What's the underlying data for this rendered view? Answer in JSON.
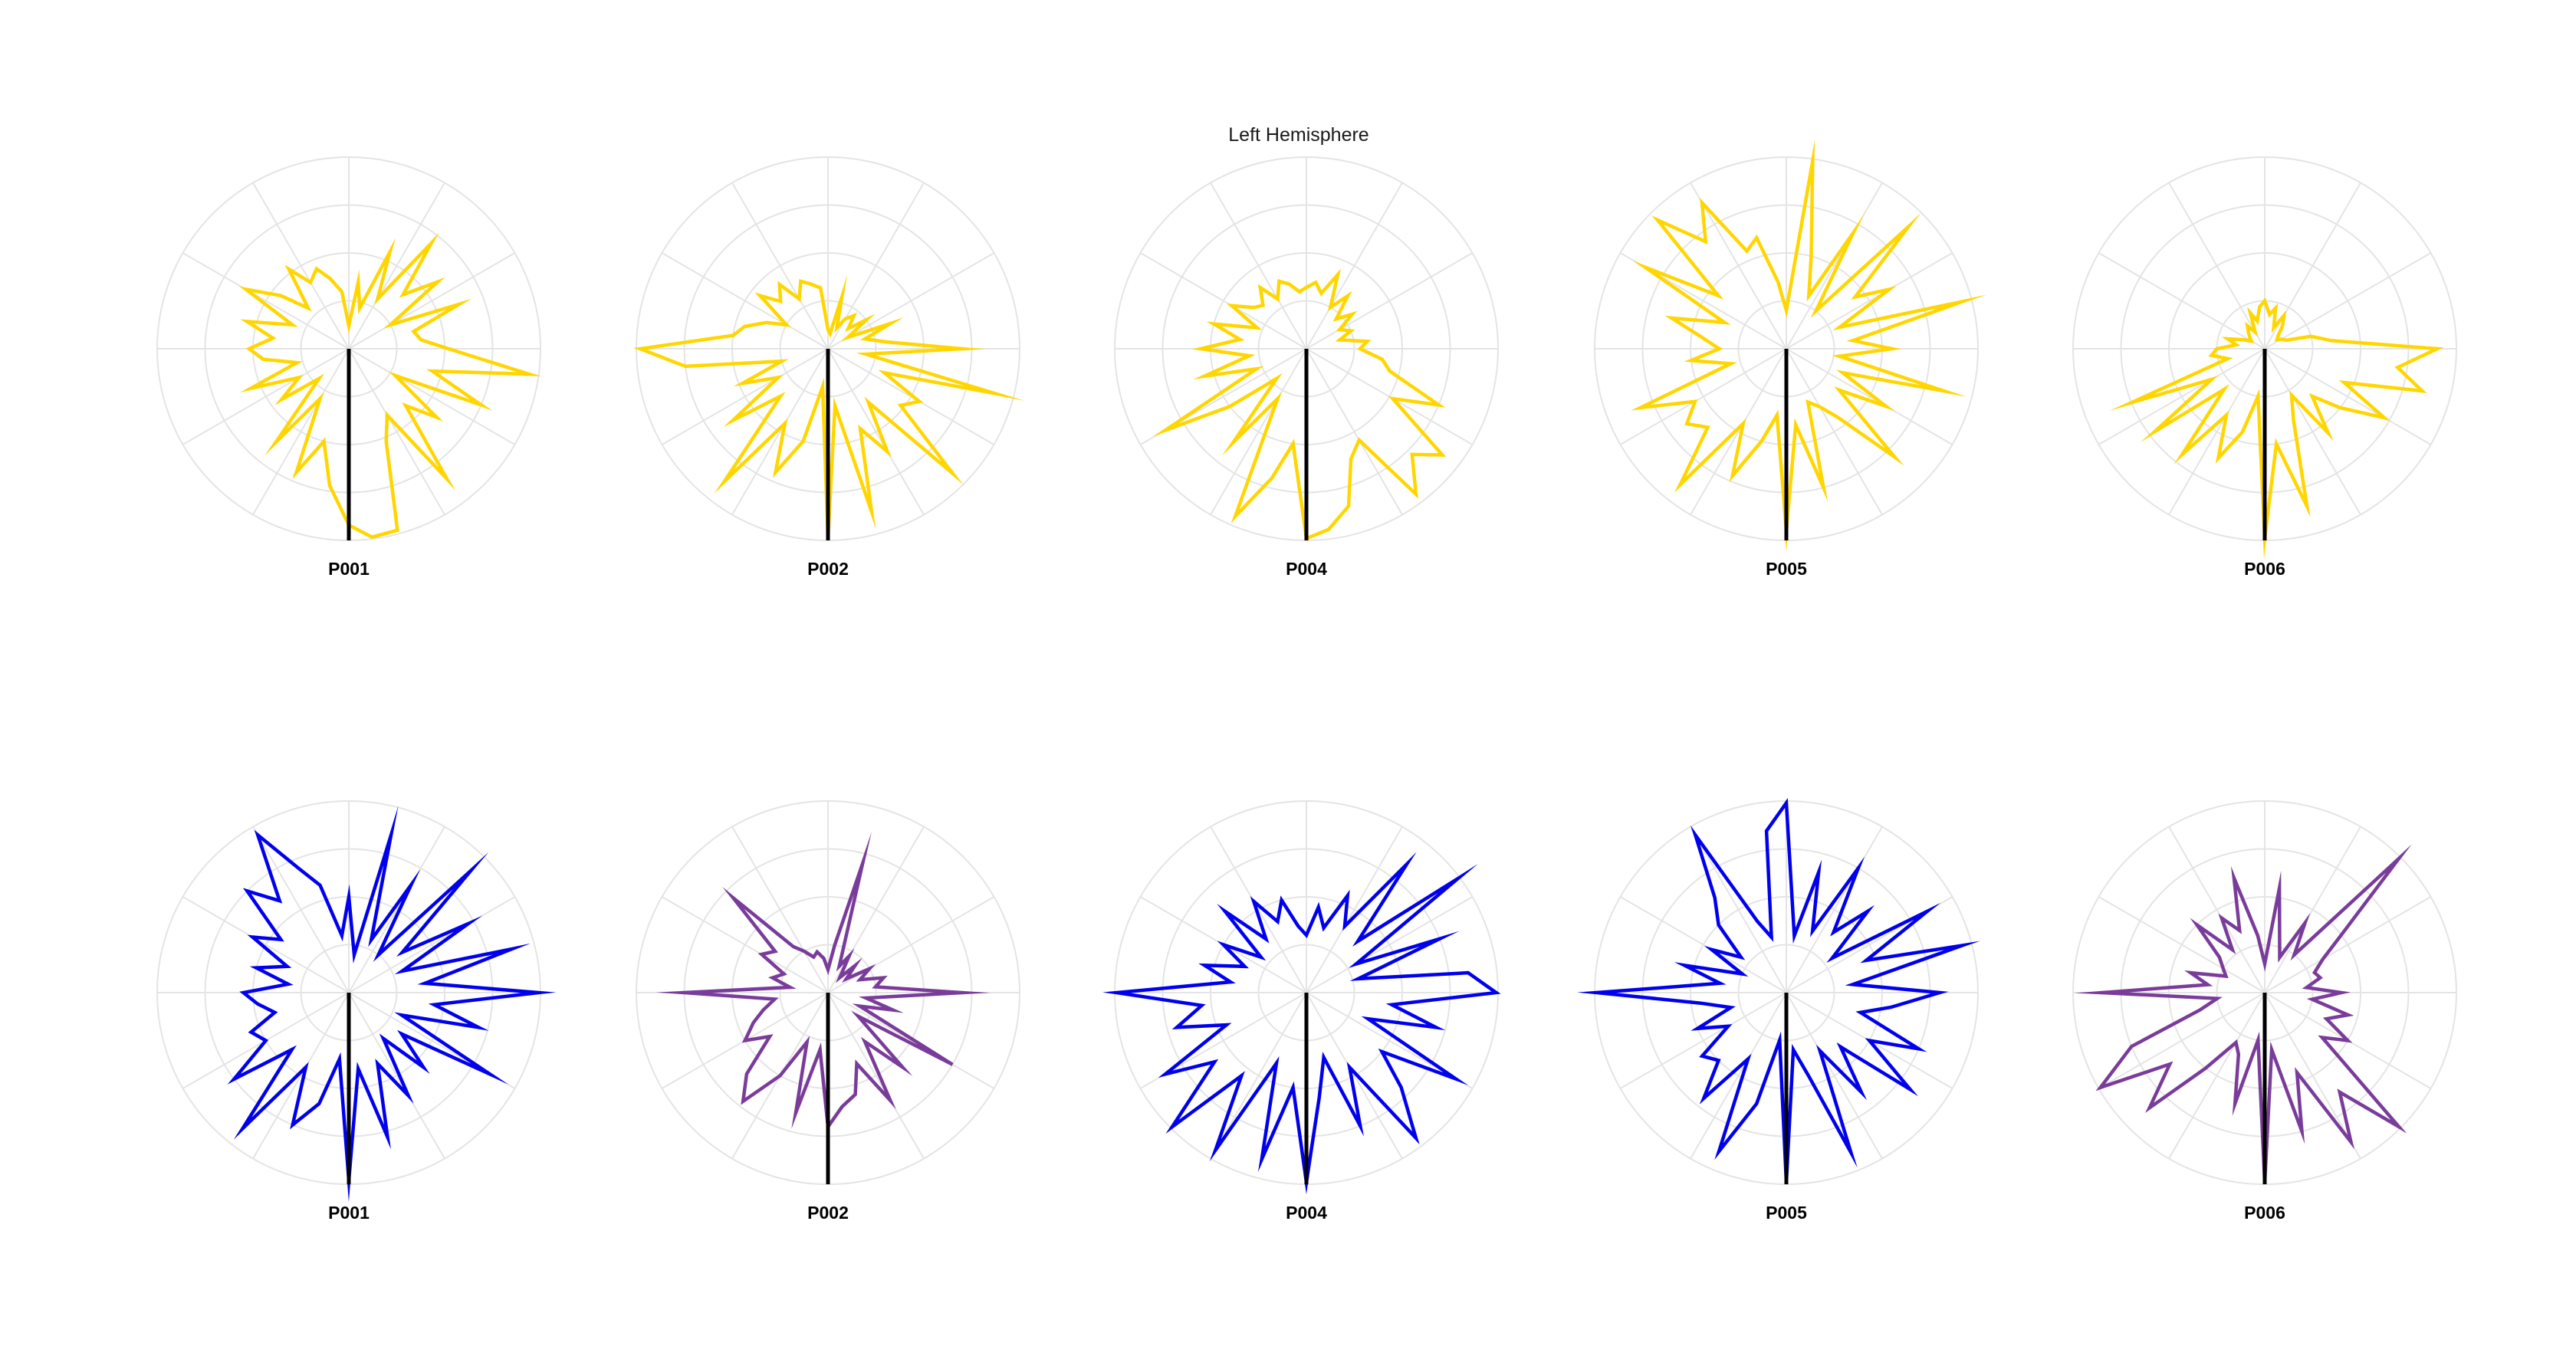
{
  "figure": {
    "title": "Left Hemisphere"
  },
  "chart_data": [
    {
      "type": "line",
      "subtype": "polar",
      "row": 1,
      "label": "P001",
      "color": "#FFD600",
      "rmax": 1,
      "grid": true,
      "series": [
        {
          "theta_deg": [
            0,
            8,
            15,
            23,
            30,
            38,
            45,
            53,
            60,
            68,
            75,
            83,
            90,
            98,
            105,
            113,
            120,
            128,
            135,
            143,
            150,
            158,
            165,
            173,
            180,
            188,
            195,
            203,
            210,
            218,
            225,
            233,
            240,
            248,
            255,
            263,
            270,
            278,
            285,
            293,
            300,
            308,
            315,
            323,
            330,
            338,
            345,
            353
          ],
          "r": [
            0.12,
            0.35,
            0.22,
            0.55,
            0.3,
            0.7,
            0.4,
            0.58,
            0.25,
            0.62,
            0.35,
            0.38,
            0.52,
            0.95,
            0.45,
            0.75,
            0.28,
            0.58,
            0.42,
            0.85,
            0.4,
            0.52,
            0.98,
            0.99,
            0.92,
            0.72,
            0.5,
            0.7,
            0.3,
            0.62,
            0.22,
            0.44,
            0.3,
            0.55,
            0.28,
            0.45,
            0.52,
            0.4,
            0.55,
            0.32,
            0.62,
            0.45,
            0.3,
            0.52,
            0.4,
            0.45,
            0.38,
            0.3
          ]
        }
      ]
    },
    {
      "type": "line",
      "subtype": "polar",
      "row": 1,
      "label": "P002",
      "color": "#FFD600",
      "rmax": 1,
      "grid": true,
      "series": [
        {
          "theta_deg": [
            0,
            8,
            15,
            23,
            30,
            38,
            45,
            53,
            60,
            68,
            75,
            83,
            90,
            98,
            105,
            113,
            120,
            128,
            135,
            143,
            150,
            158,
            165,
            173,
            180,
            188,
            195,
            203,
            210,
            218,
            225,
            233,
            240,
            248,
            255,
            263,
            270,
            278,
            285,
            293,
            300,
            308,
            315,
            323,
            330,
            338,
            345,
            353
          ],
          "r": [
            0.1,
            0.08,
            0.28,
            0.12,
            0.18,
            0.22,
            0.15,
            0.25,
            0.12,
            0.35,
            0.2,
            0.3,
            0.7,
            0.2,
            0.9,
            0.32,
            0.55,
            0.48,
            0.92,
            0.35,
            0.62,
            0.45,
            0.88,
            0.3,
            0.99,
            0.2,
            0.5,
            0.7,
            0.45,
            0.88,
            0.35,
            0.62,
            0.3,
            0.48,
            0.25,
            0.75,
            0.98,
            0.5,
            0.45,
            0.35,
            0.25,
            0.45,
            0.35,
            0.42,
            0.3,
            0.38,
            0.35,
            0.32
          ]
        }
      ]
    },
    {
      "type": "line",
      "subtype": "polar",
      "row": 1,
      "label": "P004",
      "color": "#FFD600",
      "rmax": 1,
      "grid": true,
      "series": [
        {
          "theta_deg": [
            0,
            8,
            15,
            23,
            30,
            38,
            45,
            53,
            60,
            68,
            75,
            83,
            90,
            98,
            105,
            113,
            120,
            128,
            135,
            143,
            150,
            158,
            165,
            173,
            180,
            188,
            195,
            203,
            210,
            218,
            225,
            233,
            240,
            248,
            255,
            263,
            270,
            278,
            285,
            293,
            300,
            308,
            315,
            323,
            330,
            338,
            345,
            353
          ],
          "r": [
            0.32,
            0.35,
            0.3,
            0.42,
            0.25,
            0.35,
            0.22,
            0.3,
            0.2,
            0.25,
            0.18,
            0.32,
            0.28,
            0.4,
            0.45,
            0.75,
            0.52,
            0.9,
            0.78,
            0.95,
            0.55,
            0.62,
            0.85,
            0.95,
            0.99,
            0.5,
            0.7,
            0.95,
            0.3,
            0.62,
            0.22,
            0.5,
            0.85,
            0.28,
            0.55,
            0.3,
            0.55,
            0.35,
            0.5,
            0.28,
            0.45,
            0.35,
            0.32,
            0.4,
            0.3,
            0.38,
            0.35,
            0.3
          ]
        }
      ]
    },
    {
      "type": "line",
      "subtype": "polar",
      "row": 1,
      "label": "P005",
      "color": "#FFD600",
      "rmax": 1,
      "grid": true,
      "series": [
        {
          "theta_deg": [
            0,
            8,
            15,
            23,
            30,
            38,
            45,
            53,
            60,
            68,
            75,
            83,
            90,
            98,
            105,
            113,
            120,
            128,
            135,
            143,
            150,
            158,
            165,
            173,
            180,
            188,
            195,
            203,
            210,
            218,
            225,
            233,
            240,
            248,
            255,
            263,
            270,
            278,
            285,
            293,
            300,
            308,
            315,
            323,
            330,
            338,
            345,
            353
          ],
          "r": [
            0.2,
            0.99,
            0.5,
            0.3,
            0.7,
            0.25,
            0.9,
            0.45,
            0.62,
            0.3,
            0.95,
            0.35,
            0.55,
            0.28,
            0.85,
            0.32,
            0.6,
            0.35,
            0.8,
            0.45,
            0.35,
            0.3,
            0.75,
            0.4,
            0.95,
            0.35,
            0.5,
            0.72,
            0.45,
            0.9,
            0.58,
            0.65,
            0.55,
            0.82,
            0.3,
            0.5,
            0.35,
            0.45,
            0.62,
            0.35,
            0.85,
            0.45,
            0.95,
            0.7,
            0.88,
            0.55,
            0.6,
            0.35
          ]
        }
      ]
    },
    {
      "type": "line",
      "subtype": "polar",
      "row": 1,
      "label": "P006",
      "color": "#FFD600",
      "rmax": 1,
      "grid": true,
      "series": [
        {
          "theta_deg": [
            0,
            8,
            15,
            23,
            30,
            38,
            45,
            53,
            60,
            68,
            75,
            83,
            90,
            98,
            105,
            113,
            120,
            128,
            135,
            143,
            150,
            158,
            165,
            173,
            180,
            188,
            195,
            203,
            210,
            218,
            225,
            233,
            240,
            248,
            255,
            263,
            270,
            278,
            285,
            293,
            300,
            308,
            315,
            323,
            330,
            338,
            345,
            353
          ],
          "r": [
            0.25,
            0.18,
            0.22,
            0.12,
            0.2,
            0.15,
            0.1,
            0.08,
            0.1,
            0.12,
            0.25,
            0.35,
            0.9,
            0.7,
            0.85,
            0.45,
            0.72,
            0.5,
            0.35,
            0.55,
            0.28,
            0.4,
            0.85,
            0.5,
            0.99,
            0.25,
            0.45,
            0.62,
            0.4,
            0.7,
            0.3,
            0.72,
            0.32,
            0.75,
            0.2,
            0.28,
            0.25,
            0.15,
            0.2,
            0.12,
            0.08,
            0.1,
            0.12,
            0.15,
            0.1,
            0.2,
            0.15,
            0.22
          ]
        }
      ]
    },
    {
      "type": "line",
      "subtype": "polar",
      "row": 2,
      "label": "P001",
      "color": "#0000EE",
      "rmax": 1,
      "grid": true,
      "series": [
        {
          "theta_deg": [
            0,
            8,
            15,
            23,
            30,
            38,
            45,
            53,
            60,
            68,
            75,
            83,
            90,
            98,
            105,
            113,
            120,
            128,
            135,
            143,
            150,
            158,
            165,
            173,
            180,
            188,
            195,
            203,
            210,
            218,
            225,
            233,
            240,
            248,
            255,
            263,
            270,
            278,
            285,
            293,
            300,
            308,
            315,
            323,
            330,
            338,
            345,
            353
          ],
          "r": [
            0.5,
            0.2,
            0.85,
            0.3,
            0.65,
            0.25,
            0.9,
            0.35,
            0.72,
            0.3,
            0.88,
            0.4,
            0.99,
            0.45,
            0.7,
            0.3,
            0.85,
            0.35,
            0.55,
            0.3,
            0.62,
            0.4,
            0.78,
            0.4,
            0.98,
            0.35,
            0.6,
            0.75,
            0.45,
            0.9,
            0.42,
            0.75,
            0.5,
            0.55,
            0.4,
            0.48,
            0.55,
            0.32,
            0.5,
            0.35,
            0.58,
            0.45,
            0.75,
            0.6,
            0.95,
            0.7,
            0.58,
            0.3
          ]
        }
      ]
    },
    {
      "type": "line",
      "subtype": "polar",
      "row": 2,
      "label": "P002",
      "color": "#7A3C9A",
      "rmax": 1,
      "grid": true,
      "series": [
        {
          "theta_deg": [
            0,
            8,
            15,
            23,
            30,
            38,
            45,
            53,
            60,
            68,
            75,
            83,
            90,
            98,
            105,
            113,
            120,
            128,
            135,
            143,
            150,
            158,
            165,
            173,
            180,
            188,
            195,
            203,
            210,
            218,
            225,
            233,
            240,
            248,
            255,
            263,
            270,
            278,
            285,
            293,
            300,
            308,
            315,
            323,
            330,
            338,
            345,
            353
          ],
          "r": [
            0.12,
            0.25,
            0.7,
            0.15,
            0.22,
            0.1,
            0.2,
            0.12,
            0.25,
            0.18,
            0.3,
            0.25,
            0.7,
            0.2,
            0.35,
            0.18,
            0.75,
            0.2,
            0.55,
            0.32,
            0.65,
            0.4,
            0.55,
            0.6,
            0.7,
            0.3,
            0.65,
            0.28,
            0.5,
            0.72,
            0.6,
            0.38,
            0.5,
            0.42,
            0.35,
            0.28,
            0.75,
            0.2,
            0.3,
            0.25,
            0.4,
            0.35,
            0.7,
            0.3,
            0.25,
            0.2,
            0.22,
            0.18
          ]
        }
      ]
    },
    {
      "type": "line",
      "subtype": "polar",
      "row": 2,
      "label": "P004",
      "color": "#0000EE",
      "rmax": 1,
      "grid": true,
      "series": [
        {
          "theta_deg": [
            0,
            8,
            15,
            23,
            30,
            38,
            45,
            53,
            60,
            68,
            75,
            83,
            90,
            98,
            105,
            113,
            120,
            128,
            135,
            143,
            150,
            158,
            165,
            173,
            180,
            188,
            195,
            203,
            210,
            218,
            225,
            233,
            240,
            248,
            255,
            263,
            270,
            278,
            285,
            293,
            300,
            308,
            315,
            323,
            330,
            338,
            345,
            353
          ],
          "r": [
            0.3,
            0.45,
            0.35,
            0.55,
            0.4,
            0.85,
            0.38,
            0.99,
            0.3,
            0.75,
            0.28,
            0.85,
            0.99,
            0.45,
            0.7,
            0.35,
            0.9,
            0.5,
            0.7,
            0.95,
            0.45,
            0.75,
            0.35,
            0.55,
            0.99,
            0.5,
            0.9,
            0.4,
            0.95,
            0.55,
            0.99,
            0.6,
            0.85,
            0.45,
            0.7,
            0.55,
            0.99,
            0.4,
            0.55,
            0.35,
            0.5,
            0.3,
            0.6,
            0.35,
            0.55,
            0.4,
            0.5,
            0.35
          ]
        }
      ]
    },
    {
      "type": "line",
      "subtype": "polar",
      "row": 2,
      "label": "P005",
      "color": "#0000EE",
      "rmax": 1,
      "grid": true,
      "series": [
        {
          "theta_deg": [
            0,
            8,
            15,
            23,
            30,
            38,
            45,
            53,
            60,
            68,
            75,
            83,
            90,
            98,
            105,
            113,
            120,
            128,
            135,
            143,
            150,
            158,
            165,
            173,
            180,
            188,
            195,
            203,
            210,
            218,
            225,
            233,
            240,
            248,
            255,
            263,
            270,
            278,
            285,
            293,
            300,
            308,
            315,
            323,
            330,
            338,
            345,
            353
          ],
          "r": [
            0.99,
            0.3,
            0.65,
            0.35,
            0.75,
            0.4,
            0.6,
            0.3,
            0.85,
            0.45,
            0.95,
            0.35,
            0.8,
            0.55,
            0.4,
            0.75,
            0.5,
            0.82,
            0.4,
            0.65,
            0.35,
            0.9,
            0.45,
            0.3,
            0.99,
            0.25,
            0.6,
            0.9,
            0.4,
            0.7,
            0.5,
            0.55,
            0.35,
            0.5,
            0.3,
            0.45,
            0.99,
            0.35,
            0.55,
            0.25,
            0.45,
            0.3,
            0.5,
            0.62,
            0.95,
            0.4,
            0.3,
            0.85
          ]
        }
      ]
    },
    {
      "type": "line",
      "subtype": "polar",
      "row": 2,
      "label": "P006",
      "color": "#7A3C9A",
      "rmax": 1,
      "grid": true,
      "series": [
        {
          "theta_deg": [
            0,
            8,
            15,
            23,
            30,
            38,
            45,
            53,
            60,
            68,
            75,
            83,
            90,
            98,
            105,
            113,
            120,
            128,
            135,
            143,
            150,
            158,
            165,
            173,
            180,
            188,
            195,
            203,
            210,
            218,
            225,
            233,
            240,
            248,
            255,
            263,
            270,
            278,
            285,
            293,
            300,
            308,
            315,
            323,
            330,
            338,
            345,
            353
          ],
          "r": [
            0.15,
            0.55,
            0.3,
            0.2,
            0.42,
            0.25,
            0.99,
            0.5,
            0.35,
            0.28,
            0.3,
            0.22,
            0.4,
            0.25,
            0.45,
            0.35,
            0.5,
            0.38,
            0.99,
            0.65,
            0.9,
            0.45,
            0.75,
            0.3,
            0.99,
            0.25,
            0.6,
            0.35,
            0.3,
            0.5,
            0.85,
            0.62,
            0.99,
            0.75,
            0.35,
            0.25,
            0.85,
            0.3,
            0.4,
            0.22,
            0.25,
            0.3,
            0.5,
            0.28,
            0.45,
            0.35,
            0.62,
            0.3
          ]
        }
      ]
    }
  ]
}
